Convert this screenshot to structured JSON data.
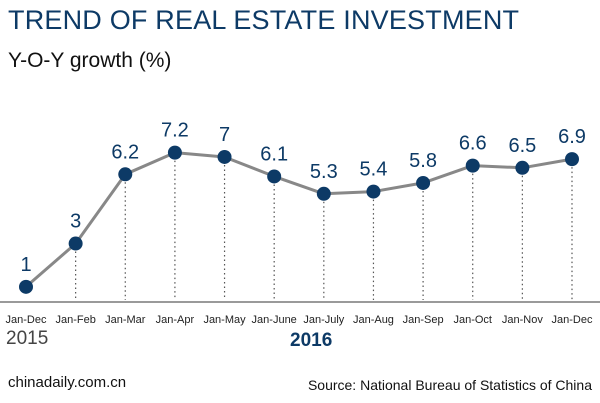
{
  "header": {
    "title": "TREND OF REAL ESTATE INVESTMENT",
    "subtitle": "Y-O-Y growth (%)"
  },
  "colors": {
    "title": "#0d3a66",
    "line": "#888888",
    "marker": "#0d3a66",
    "value_label": "#0d3a66"
  },
  "chart_data": {
    "type": "line",
    "title": "TREND OF REAL ESTATE INVESTMENT",
    "ylabel": "Y-O-Y growth (%)",
    "xlabel": "",
    "categories": [
      "Jan-Dec",
      "Jan-Feb",
      "Jan-Mar",
      "Jan-Apr",
      "Jan-May",
      "Jan-June",
      "Jan-July",
      "Jan-Aug",
      "Jan-Sep",
      "Jan-Oct",
      "Jan-Nov",
      "Jan-Dec"
    ],
    "values": [
      1,
      3,
      6.2,
      7.2,
      7,
      6.1,
      5.3,
      5.4,
      5.8,
      6.6,
      6.5,
      6.9
    ],
    "value_labels": [
      "1",
      "3",
      "6.2",
      "7.2",
      "7",
      "6.1",
      "5.3",
      "5.4",
      "5.8",
      "6.6",
      "6.5",
      "6.9"
    ],
    "ylim": [
      0.3,
      8.8
    ],
    "grid": false,
    "group_labels": [
      "2015",
      "2016"
    ]
  },
  "footer": {
    "credit": "chinadaily.com.cn",
    "source": "Source: National Bureau of Statistics of China"
  }
}
